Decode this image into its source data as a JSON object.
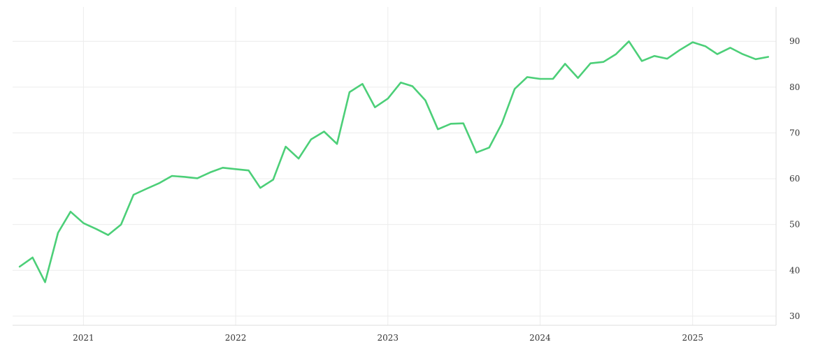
{
  "chart_data": {
    "type": "line",
    "title": "",
    "xlabel": "",
    "ylabel": "",
    "x_ticks": [
      "2021",
      "2022",
      "2023",
      "2024",
      "2025"
    ],
    "y_ticks": [
      30,
      40,
      50,
      60,
      70,
      80,
      90
    ],
    "xlim": [
      "2020-07-15",
      "2025-07-20"
    ],
    "ylim": [
      28.0,
      97.5
    ],
    "y_axis_side": "right",
    "grid": true,
    "line_color": "#4ccf78",
    "grid_color": "#ececec",
    "axis_color": "#dddddd",
    "series": [
      {
        "x": [
          "2020-08-01",
          "2020-09-01",
          "2020-10-01",
          "2020-11-01",
          "2020-12-01",
          "2021-01-01",
          "2021-02-01",
          "2021-03-01",
          "2021-04-01",
          "2021-05-01",
          "2021-06-01",
          "2021-07-01",
          "2021-08-01",
          "2021-09-01",
          "2021-10-01",
          "2021-11-01",
          "2021-12-01",
          "2022-01-01",
          "2022-02-01",
          "2022-03-01",
          "2022-04-01",
          "2022-05-01",
          "2022-06-01",
          "2022-07-01",
          "2022-08-01",
          "2022-09-01",
          "2022-10-01",
          "2022-11-01",
          "2022-12-01",
          "2023-01-01",
          "2023-02-01",
          "2023-03-01",
          "2023-04-01",
          "2023-05-01",
          "2023-06-01",
          "2023-07-01",
          "2023-08-01",
          "2023-09-01",
          "2023-10-01",
          "2023-11-01",
          "2023-12-01",
          "2024-01-01",
          "2024-02-01",
          "2024-03-01",
          "2024-04-01",
          "2024-05-01",
          "2024-06-01",
          "2024-07-01",
          "2024-08-01",
          "2024-09-01",
          "2024-10-01",
          "2024-11-01",
          "2024-12-01",
          "2025-01-01",
          "2025-02-01",
          "2025-03-01",
          "2025-04-01",
          "2025-05-01",
          "2025-06-01",
          "2025-07-01"
        ],
        "values": [
          40.8,
          42.8,
          37.4,
          48.2,
          52.8,
          50.3,
          49.0,
          47.7,
          50.0,
          56.5,
          57.8,
          59.0,
          60.6,
          60.4,
          60.1,
          61.4,
          62.4,
          62.1,
          61.8,
          58.0,
          59.8,
          67.0,
          64.4,
          68.6,
          70.3,
          67.6,
          78.9,
          80.7,
          75.6,
          77.5,
          81.0,
          80.2,
          77.1,
          70.8,
          72.0,
          72.1,
          65.7,
          66.8,
          72.0,
          79.6,
          82.2,
          81.8,
          81.8,
          85.1,
          82.0,
          85.2,
          85.5,
          87.2,
          90.0,
          85.7,
          86.8,
          86.2,
          88.1,
          89.8,
          88.9,
          87.2,
          88.6,
          87.2,
          86.1,
          86.6
        ]
      }
    ]
  }
}
